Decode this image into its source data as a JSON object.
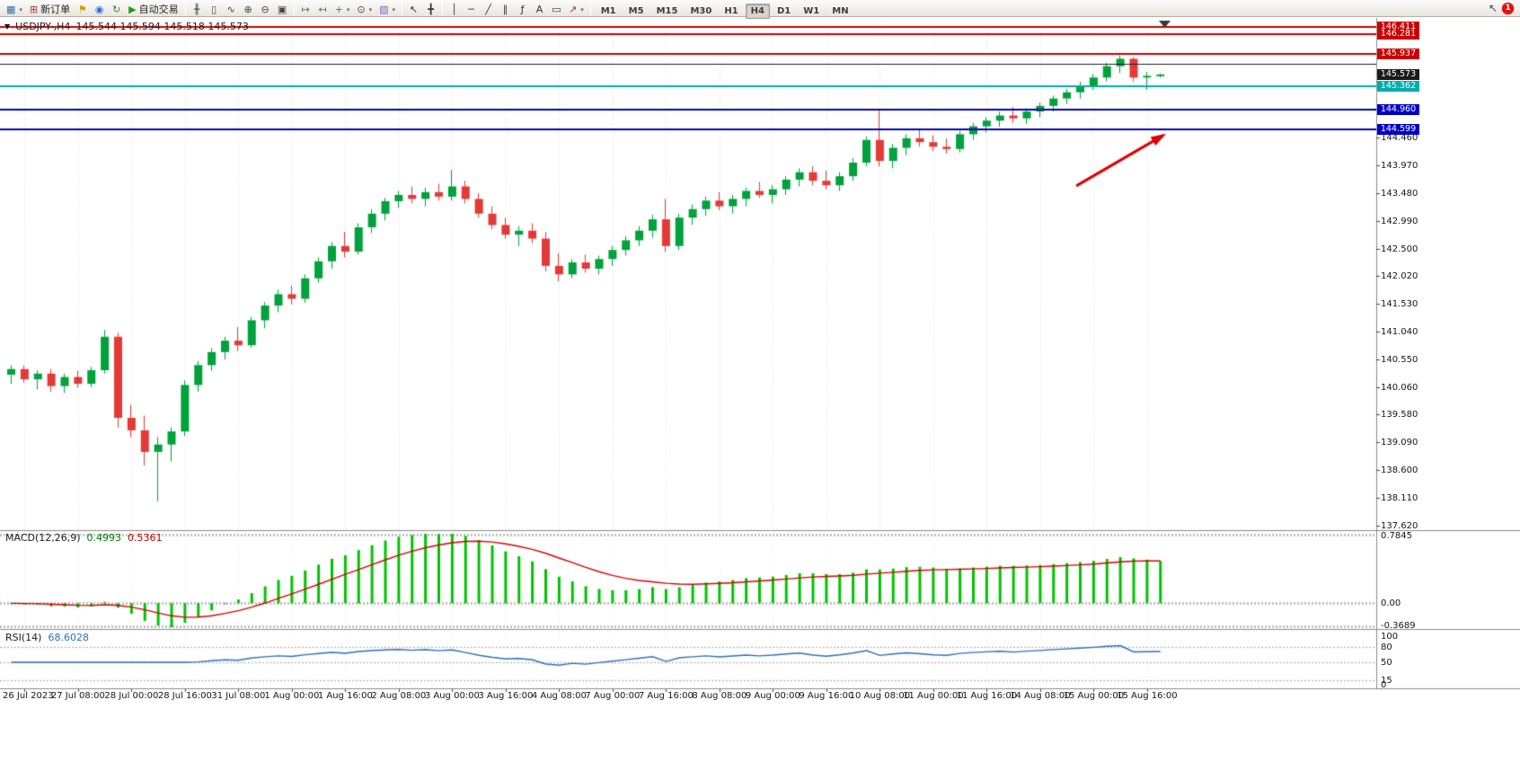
{
  "toolbar": {
    "standard": [
      {
        "name": "new-chart-button",
        "glyph": "▦",
        "color": "#3a6ea5",
        "dd": true
      },
      {
        "name": "new-order-button",
        "glyph": "⊞",
        "color": "#b93030",
        "label": "新订单"
      },
      {
        "name": "alerts-button",
        "glyph": "⚑",
        "color": "#d79a00"
      },
      {
        "name": "community-button",
        "glyph": "◉",
        "color": "#2a6fd6"
      },
      {
        "name": "refresh-button",
        "glyph": "↻",
        "color": "#2e8b2e"
      },
      {
        "name": "auto-trading-button",
        "glyph": "▶",
        "color": "#1f9d1f",
        "label": "自动交易"
      },
      {
        "sep": true
      },
      {
        "name": "bar-chart-button",
        "glyph": "╫",
        "color": "#444444"
      },
      {
        "name": "candlestick-chart-button",
        "glyph": "▯",
        "color": "#444444"
      },
      {
        "name": "line-chart-button",
        "glyph": "∿",
        "color": "#444444"
      },
      {
        "name": "zoom-in-button",
        "glyph": "⊕",
        "color": "#444444"
      },
      {
        "name": "zoom-out-button",
        "glyph": "⊖",
        "color": "#444444"
      },
      {
        "name": "tile-windows-button",
        "glyph": "▣",
        "color": "#444444"
      },
      {
        "sep": true
      },
      {
        "name": "auto-scroll-button",
        "glyph": "↦",
        "color": "#2e8b2e"
      },
      {
        "name": "chart-shift-button",
        "glyph": "↤",
        "color": "#2e8b2e"
      },
      {
        "name": "indicators-button",
        "glyph": "+",
        "color": "#1f9d1f",
        "dd": true
      },
      {
        "name": "periods-button",
        "glyph": "⊙",
        "color": "#444444",
        "dd": true
      },
      {
        "name": "templates-button",
        "glyph": "▧",
        "color": "#7d5fc0",
        "dd": true
      },
      {
        "sep": true
      },
      {
        "name": "cursor-button",
        "glyph": "↖",
        "color": "#333333"
      },
      {
        "name": "crosshair-button",
        "glyph": "╋",
        "color": "#333333"
      },
      {
        "sep": true
      },
      {
        "name": "vertical-line-button",
        "glyph": "│",
        "color": "#333333"
      },
      {
        "name": "horizontal-line-button",
        "glyph": "─",
        "color": "#333333"
      },
      {
        "name": "trendline-button",
        "glyph": "╱",
        "color": "#333333"
      },
      {
        "name": "channel-button",
        "glyph": "∥",
        "color": "#333333"
      },
      {
        "name": "fibonacci-button",
        "glyph": "ƒ",
        "color": "#333333"
      },
      {
        "name": "text-button",
        "glyph": "A",
        "color": "#333333"
      },
      {
        "name": "text-label-button",
        "glyph": "▭",
        "color": "#333333"
      },
      {
        "name": "arrows-button",
        "glyph": "↗",
        "color": "#b93030",
        "dd": true
      },
      {
        "sep": true
      }
    ],
    "timeframes": {
      "options": [
        "M1",
        "M5",
        "M15",
        "M30",
        "H1",
        "H4",
        "D1",
        "W1",
        "MN"
      ],
      "active": "H4"
    },
    "pointer_glyph": "↖",
    "notifications": {
      "count": "1"
    }
  },
  "chart": {
    "marker_glyph": "▼",
    "symbol_period": "USDJPY-,H4",
    "ohlc_text": "145.544 145.594 145.518 145.573"
  },
  "chart_data": {
    "type": "candlestick",
    "symbol": "USDJPY",
    "timeframe": "H4",
    "ohlc_current": {
      "open": 145.544,
      "high": 145.594,
      "low": 145.518,
      "close": 145.573
    },
    "candles": [
      [
        140.28,
        140.45,
        140.12,
        140.38
      ],
      [
        140.38,
        140.44,
        140.14,
        140.2
      ],
      [
        140.2,
        140.36,
        140.02,
        140.3
      ],
      [
        140.3,
        140.38,
        139.98,
        140.08
      ],
      [
        140.08,
        140.3,
        139.96,
        140.24
      ],
      [
        140.24,
        140.35,
        140.05,
        140.12
      ],
      [
        140.12,
        140.42,
        140.06,
        140.36
      ],
      [
        140.36,
        141.07,
        140.3,
        140.95
      ],
      [
        140.95,
        141.02,
        139.35,
        139.52
      ],
      [
        139.52,
        139.75,
        139.18,
        139.3
      ],
      [
        139.3,
        139.56,
        138.68,
        138.92
      ],
      [
        138.92,
        139.18,
        138.05,
        139.05
      ],
      [
        139.05,
        139.35,
        138.75,
        139.28
      ],
      [
        139.28,
        140.18,
        139.2,
        140.1
      ],
      [
        140.1,
        140.52,
        139.98,
        140.45
      ],
      [
        140.45,
        140.75,
        140.35,
        140.68
      ],
      [
        140.68,
        140.95,
        140.55,
        140.88
      ],
      [
        140.88,
        141.12,
        140.7,
        140.8
      ],
      [
        140.8,
        141.3,
        140.76,
        141.24
      ],
      [
        141.24,
        141.56,
        141.1,
        141.5
      ],
      [
        141.5,
        141.78,
        141.38,
        141.7
      ],
      [
        141.7,
        141.85,
        141.52,
        141.62
      ],
      [
        141.62,
        142.05,
        141.55,
        141.98
      ],
      [
        141.98,
        142.35,
        141.9,
        142.28
      ],
      [
        142.28,
        142.62,
        142.15,
        142.55
      ],
      [
        142.55,
        142.8,
        142.35,
        142.45
      ],
      [
        142.45,
        142.95,
        142.4,
        142.88
      ],
      [
        142.88,
        143.2,
        142.78,
        143.12
      ],
      [
        143.12,
        143.4,
        143.0,
        143.34
      ],
      [
        143.34,
        143.52,
        143.22,
        143.45
      ],
      [
        143.45,
        143.6,
        143.3,
        143.38
      ],
      [
        143.38,
        143.58,
        143.25,
        143.5
      ],
      [
        143.5,
        143.65,
        143.35,
        143.42
      ],
      [
        143.42,
        143.89,
        143.35,
        143.6
      ],
      [
        143.6,
        143.7,
        143.3,
        143.38
      ],
      [
        143.38,
        143.48,
        143.05,
        143.12
      ],
      [
        143.12,
        143.25,
        142.85,
        142.92
      ],
      [
        142.92,
        143.05,
        142.68,
        142.75
      ],
      [
        142.75,
        142.9,
        142.55,
        142.82
      ],
      [
        142.82,
        142.95,
        142.6,
        142.68
      ],
      [
        142.68,
        142.8,
        142.1,
        142.2
      ],
      [
        142.2,
        142.42,
        141.93,
        142.05
      ],
      [
        142.05,
        142.32,
        141.98,
        142.26
      ],
      [
        142.26,
        142.4,
        142.08,
        142.15
      ],
      [
        142.15,
        142.38,
        142.05,
        142.32
      ],
      [
        142.32,
        142.55,
        142.2,
        142.48
      ],
      [
        142.48,
        142.72,
        142.38,
        142.65
      ],
      [
        142.65,
        142.9,
        142.55,
        142.82
      ],
      [
        142.82,
        143.1,
        142.7,
        143.02
      ],
      [
        143.02,
        143.38,
        142.45,
        142.55
      ],
      [
        142.55,
        143.12,
        142.48,
        143.05
      ],
      [
        143.05,
        143.28,
        142.92,
        143.2
      ],
      [
        143.2,
        143.42,
        143.08,
        143.35
      ],
      [
        143.35,
        143.5,
        143.18,
        143.25
      ],
      [
        143.25,
        143.45,
        143.12,
        143.38
      ],
      [
        143.38,
        143.58,
        143.25,
        143.52
      ],
      [
        143.52,
        143.68,
        143.4,
        143.45
      ],
      [
        143.45,
        143.62,
        143.3,
        143.55
      ],
      [
        143.55,
        143.78,
        143.45,
        143.72
      ],
      [
        143.72,
        143.92,
        143.6,
        143.85
      ],
      [
        143.85,
        143.95,
        143.62,
        143.7
      ],
      [
        143.7,
        143.88,
        143.55,
        143.62
      ],
      [
        143.62,
        143.85,
        143.52,
        143.78
      ],
      [
        143.78,
        144.1,
        143.7,
        144.02
      ],
      [
        144.02,
        144.48,
        143.95,
        144.42
      ],
      [
        144.42,
        144.95,
        143.95,
        144.05
      ],
      [
        144.05,
        144.35,
        143.92,
        144.28
      ],
      [
        144.28,
        144.52,
        144.15,
        144.45
      ],
      [
        144.45,
        144.62,
        144.3,
        144.38
      ],
      [
        144.38,
        144.5,
        144.22,
        144.3
      ],
      [
        144.3,
        144.45,
        144.18,
        144.26
      ],
      [
        144.26,
        144.58,
        144.2,
        144.52
      ],
      [
        144.52,
        144.72,
        144.42,
        144.66
      ],
      [
        144.66,
        144.82,
        144.55,
        144.76
      ],
      [
        144.76,
        144.92,
        144.65,
        144.85
      ],
      [
        144.85,
        145.0,
        144.72,
        144.8
      ],
      [
        144.8,
        144.98,
        144.7,
        144.92
      ],
      [
        144.92,
        145.08,
        144.82,
        145.02
      ],
      [
        145.02,
        145.2,
        144.92,
        145.15
      ],
      [
        145.15,
        145.32,
        145.05,
        145.26
      ],
      [
        145.26,
        145.45,
        145.15,
        145.38
      ],
      [
        145.38,
        145.58,
        145.3,
        145.52
      ],
      [
        145.52,
        145.78,
        145.45,
        145.72
      ],
      [
        145.72,
        145.91,
        145.6,
        145.85
      ],
      [
        145.85,
        145.88,
        145.45,
        145.52
      ],
      [
        145.52,
        145.62,
        145.3,
        145.55
      ],
      [
        145.544,
        145.594,
        145.518,
        145.573
      ]
    ],
    "time_labels": [
      "26 Jul 2023",
      "27 Jul 08:00",
      "28 Jul 00:00",
      "28 Jul 16:00",
      "31 Jul 08:00",
      "1 Aug 00:00",
      "1 Aug 16:00",
      "2 Aug 08:00",
      "3 Aug 00:00",
      "3 Aug 16:00",
      "4 Aug 08:00",
      "7 Aug 00:00",
      "7 Aug 16:00",
      "8 Aug 08:00",
      "9 Aug 00:00",
      "9 Aug 16:00",
      "10 Aug 08:00",
      "11 Aug 00:00",
      "11 Aug 16:00",
      "14 Aug 08:00",
      "15 Aug 00:00",
      "15 Aug 16:00"
    ],
    "price_axis": {
      "view_max": 146.57,
      "view_min": 137.54,
      "ticks": [
        "144.460",
        "143.970",
        "143.480",
        "142.990",
        "142.500",
        "142.020",
        "141.530",
        "141.040",
        "140.550",
        "140.060",
        "139.580",
        "139.090",
        "138.600",
        "138.110",
        "137.620"
      ],
      "badges": [
        {
          "text": "146.411",
          "price": 146.411,
          "color": "#CC0000"
        },
        {
          "text": "146.281",
          "price": 146.281,
          "color": "#CC0000"
        },
        {
          "text": "145.937",
          "price": 145.937,
          "color": "#CC0000"
        },
        {
          "text": "145.573",
          "price": 145.573,
          "color": "#1a1a1a"
        },
        {
          "text": "145.362",
          "price": 145.362,
          "color": "#00ACAC"
        },
        {
          "text": "144.960",
          "price": 144.96,
          "color": "#0000C8"
        },
        {
          "text": "144.599",
          "price": 144.599,
          "color": "#0000C8"
        }
      ]
    },
    "hlines": [
      {
        "price": 146.411,
        "color": "#CC0000",
        "width": 2
      },
      {
        "price": 146.281,
        "color": "#CC0000",
        "width": 2
      },
      {
        "price": 145.937,
        "color": "#CC0000",
        "width": 2
      },
      {
        "price": 145.757,
        "color": "#222222",
        "width": 1
      },
      {
        "price": 145.362,
        "color": "#00ACAC",
        "width": 2
      },
      {
        "price": 144.96,
        "color": "#0000C8",
        "width": 2
      },
      {
        "price": 144.599,
        "color": "#0000C8",
        "width": 2
      }
    ],
    "arrow_annotation": {
      "from": {
        "candle": 79.7,
        "price": 143.61
      },
      "to": {
        "candle": 86.2,
        "price": 144.5
      },
      "color": "#E00000"
    },
    "indicators": [
      {
        "name": "MACD",
        "label": "MACD(12,26,9)",
        "params": {
          "fast": 12,
          "slow": 26,
          "signal": 9
        },
        "value_main": "0.4993",
        "value_signal": "0.5361",
        "scale_labels": {
          "max": "0.7845",
          "zero": "0.00",
          "min": "-0.3689"
        },
        "colors": {
          "histogram": "#00C400",
          "signal": "#DD0000"
        }
      },
      {
        "name": "RSI",
        "label": "RSI(14)",
        "params": {
          "period": 14
        },
        "value": "68.6028",
        "scale_labels": [
          "100",
          "80",
          "50",
          "15",
          "0"
        ],
        "levels": [
          80,
          50,
          15
        ],
        "colors": {
          "line": "#2f6fbe"
        }
      }
    ],
    "colors": {
      "up": "#00A23B",
      "down": "#E43A36",
      "grid": "#E4E4E4",
      "axis_line": "#8a8a8a"
    }
  }
}
